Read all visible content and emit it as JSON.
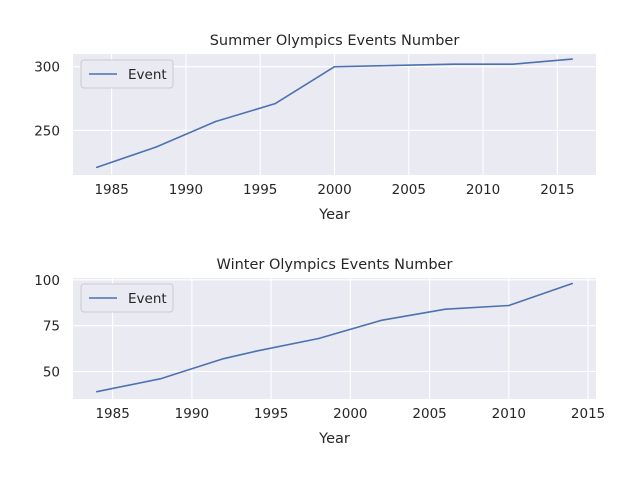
{
  "chart_data": [
    {
      "type": "line",
      "title": "Summer Olympics Events Number",
      "xlabel": "Year",
      "ylabel": "",
      "xlim": [
        1982.4,
        2017.6
      ],
      "ylim": [
        215,
        310
      ],
      "xticks": [
        1985,
        1990,
        1995,
        2000,
        2005,
        2010,
        2015
      ],
      "yticks": [
        250,
        300
      ],
      "grid": true,
      "legend": "upper-left",
      "series": [
        {
          "name": "Event",
          "color": "#4c72b0",
          "x": [
            1984,
            1988,
            1992,
            1996,
            2000,
            2004,
            2008,
            2012,
            2016
          ],
          "y": [
            221,
            237,
            257,
            271,
            300,
            301,
            302,
            302,
            306
          ]
        }
      ]
    },
    {
      "type": "line",
      "title": "Winter Olympics Events Number",
      "xlabel": "Year",
      "ylabel": "",
      "xlim": [
        1982.5,
        2015.5
      ],
      "ylim": [
        35,
        101
      ],
      "xticks": [
        1985,
        1990,
        1995,
        2000,
        2005,
        2010,
        2015
      ],
      "yticks": [
        50,
        75,
        100
      ],
      "grid": true,
      "legend": "upper-left",
      "series": [
        {
          "name": "Event",
          "color": "#4c72b0",
          "x": [
            1984,
            1988,
            1992,
            1994,
            1998,
            2002,
            2006,
            2010,
            2014
          ],
          "y": [
            39,
            46,
            57,
            61,
            68,
            78,
            84,
            86,
            98
          ]
        }
      ]
    }
  ]
}
